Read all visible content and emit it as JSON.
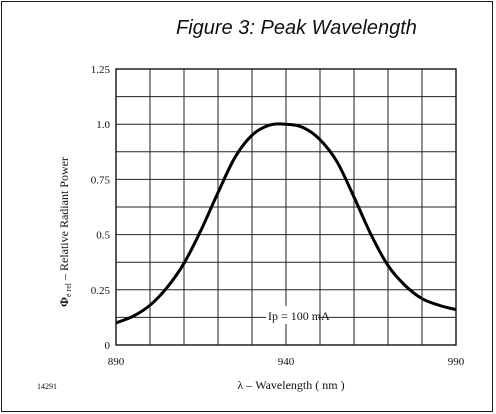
{
  "figure": {
    "title": "Figure 3: Peak Wavelength",
    "code": "14291"
  },
  "chart_data": {
    "type": "line",
    "xlabel": "λ – Wavelength ( nm )",
    "ylabel": "Φe rel – Relative Radiant Power",
    "ylabel_main": "Φ",
    "ylabel_sub": "e rel",
    "ylabel_rest": " – Relative Radiant Power",
    "xlim": [
      890,
      990
    ],
    "ylim": [
      0,
      1.25
    ],
    "x_ticks": [
      890,
      940,
      990
    ],
    "x_tick_labels": [
      "890",
      "940",
      "990"
    ],
    "y_ticks": [
      0,
      0.25,
      0.5,
      0.75,
      1.0,
      1.25
    ],
    "y_tick_labels": [
      "0",
      "0.25",
      "0.5",
      "0.75",
      "1.0",
      "1.25"
    ],
    "grid": true,
    "annotation": "Ip = 100 mA",
    "series": [
      {
        "color": "#000000",
        "x": [
          890,
          895,
          900,
          905,
          910,
          915,
          920,
          925,
          930,
          935,
          940,
          945,
          950,
          955,
          960,
          965,
          970,
          975,
          980,
          985,
          990
        ],
        "y": [
          0.1,
          0.13,
          0.18,
          0.26,
          0.37,
          0.52,
          0.69,
          0.85,
          0.95,
          0.995,
          1.0,
          0.985,
          0.93,
          0.83,
          0.67,
          0.5,
          0.36,
          0.27,
          0.21,
          0.18,
          0.16
        ]
      }
    ]
  }
}
